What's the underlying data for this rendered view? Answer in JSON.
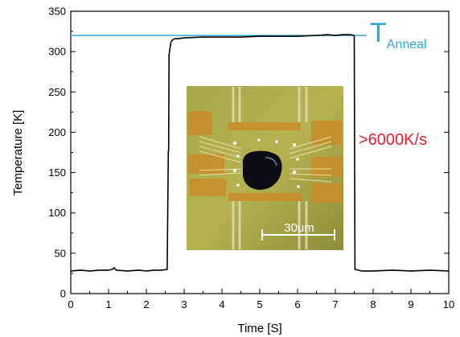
{
  "chart_data": {
    "type": "line",
    "title": "",
    "xlabel": "Time [S]",
    "ylabel": "Temperature [K]",
    "xlim": [
      0,
      10
    ],
    "ylim": [
      0,
      350
    ],
    "x_ticks": [
      "0",
      "1",
      "2",
      "3",
      "4",
      "5",
      "6",
      "7",
      "8",
      "9",
      "10"
    ],
    "y_ticks": [
      "0",
      "50",
      "100",
      "150",
      "200",
      "250",
      "300",
      "350"
    ],
    "grid": false,
    "legend": "none",
    "series": [
      {
        "color": "#000000",
        "x": [
          0.0,
          0.25,
          0.5,
          0.75,
          1.0,
          1.1,
          1.15,
          1.2,
          1.5,
          1.8,
          2.0,
          2.2,
          2.4,
          2.55,
          2.58,
          2.59,
          2.6,
          2.65,
          2.68,
          2.75,
          2.85,
          3.0,
          3.5,
          4.0,
          4.5,
          5.0,
          5.5,
          6.0,
          6.5,
          6.8,
          7.0,
          7.2,
          7.4,
          7.5,
          7.51,
          7.52,
          7.6,
          7.7,
          8.0,
          8.5,
          9.0,
          9.5,
          10.0
        ],
        "y": [
          28,
          29,
          28,
          29,
          29,
          30,
          32,
          29,
          28,
          29,
          28,
          29,
          29,
          30,
          176,
          178,
          296,
          312,
          314,
          316,
          316,
          317,
          318,
          318,
          318,
          319,
          319,
          319,
          320,
          321,
          320,
          321,
          321,
          320,
          150,
          30,
          29,
          28,
          28,
          29,
          28,
          29,
          28
        ]
      }
    ],
    "reference_line": {
      "label": "T",
      "subscript": "Anneal",
      "y": 320,
      "color": "#29a8d8"
    },
    "annotation": {
      "text": ">6000K/s",
      "color": "#e0202e"
    },
    "inset": {
      "scale_label": "30um"
    }
  }
}
